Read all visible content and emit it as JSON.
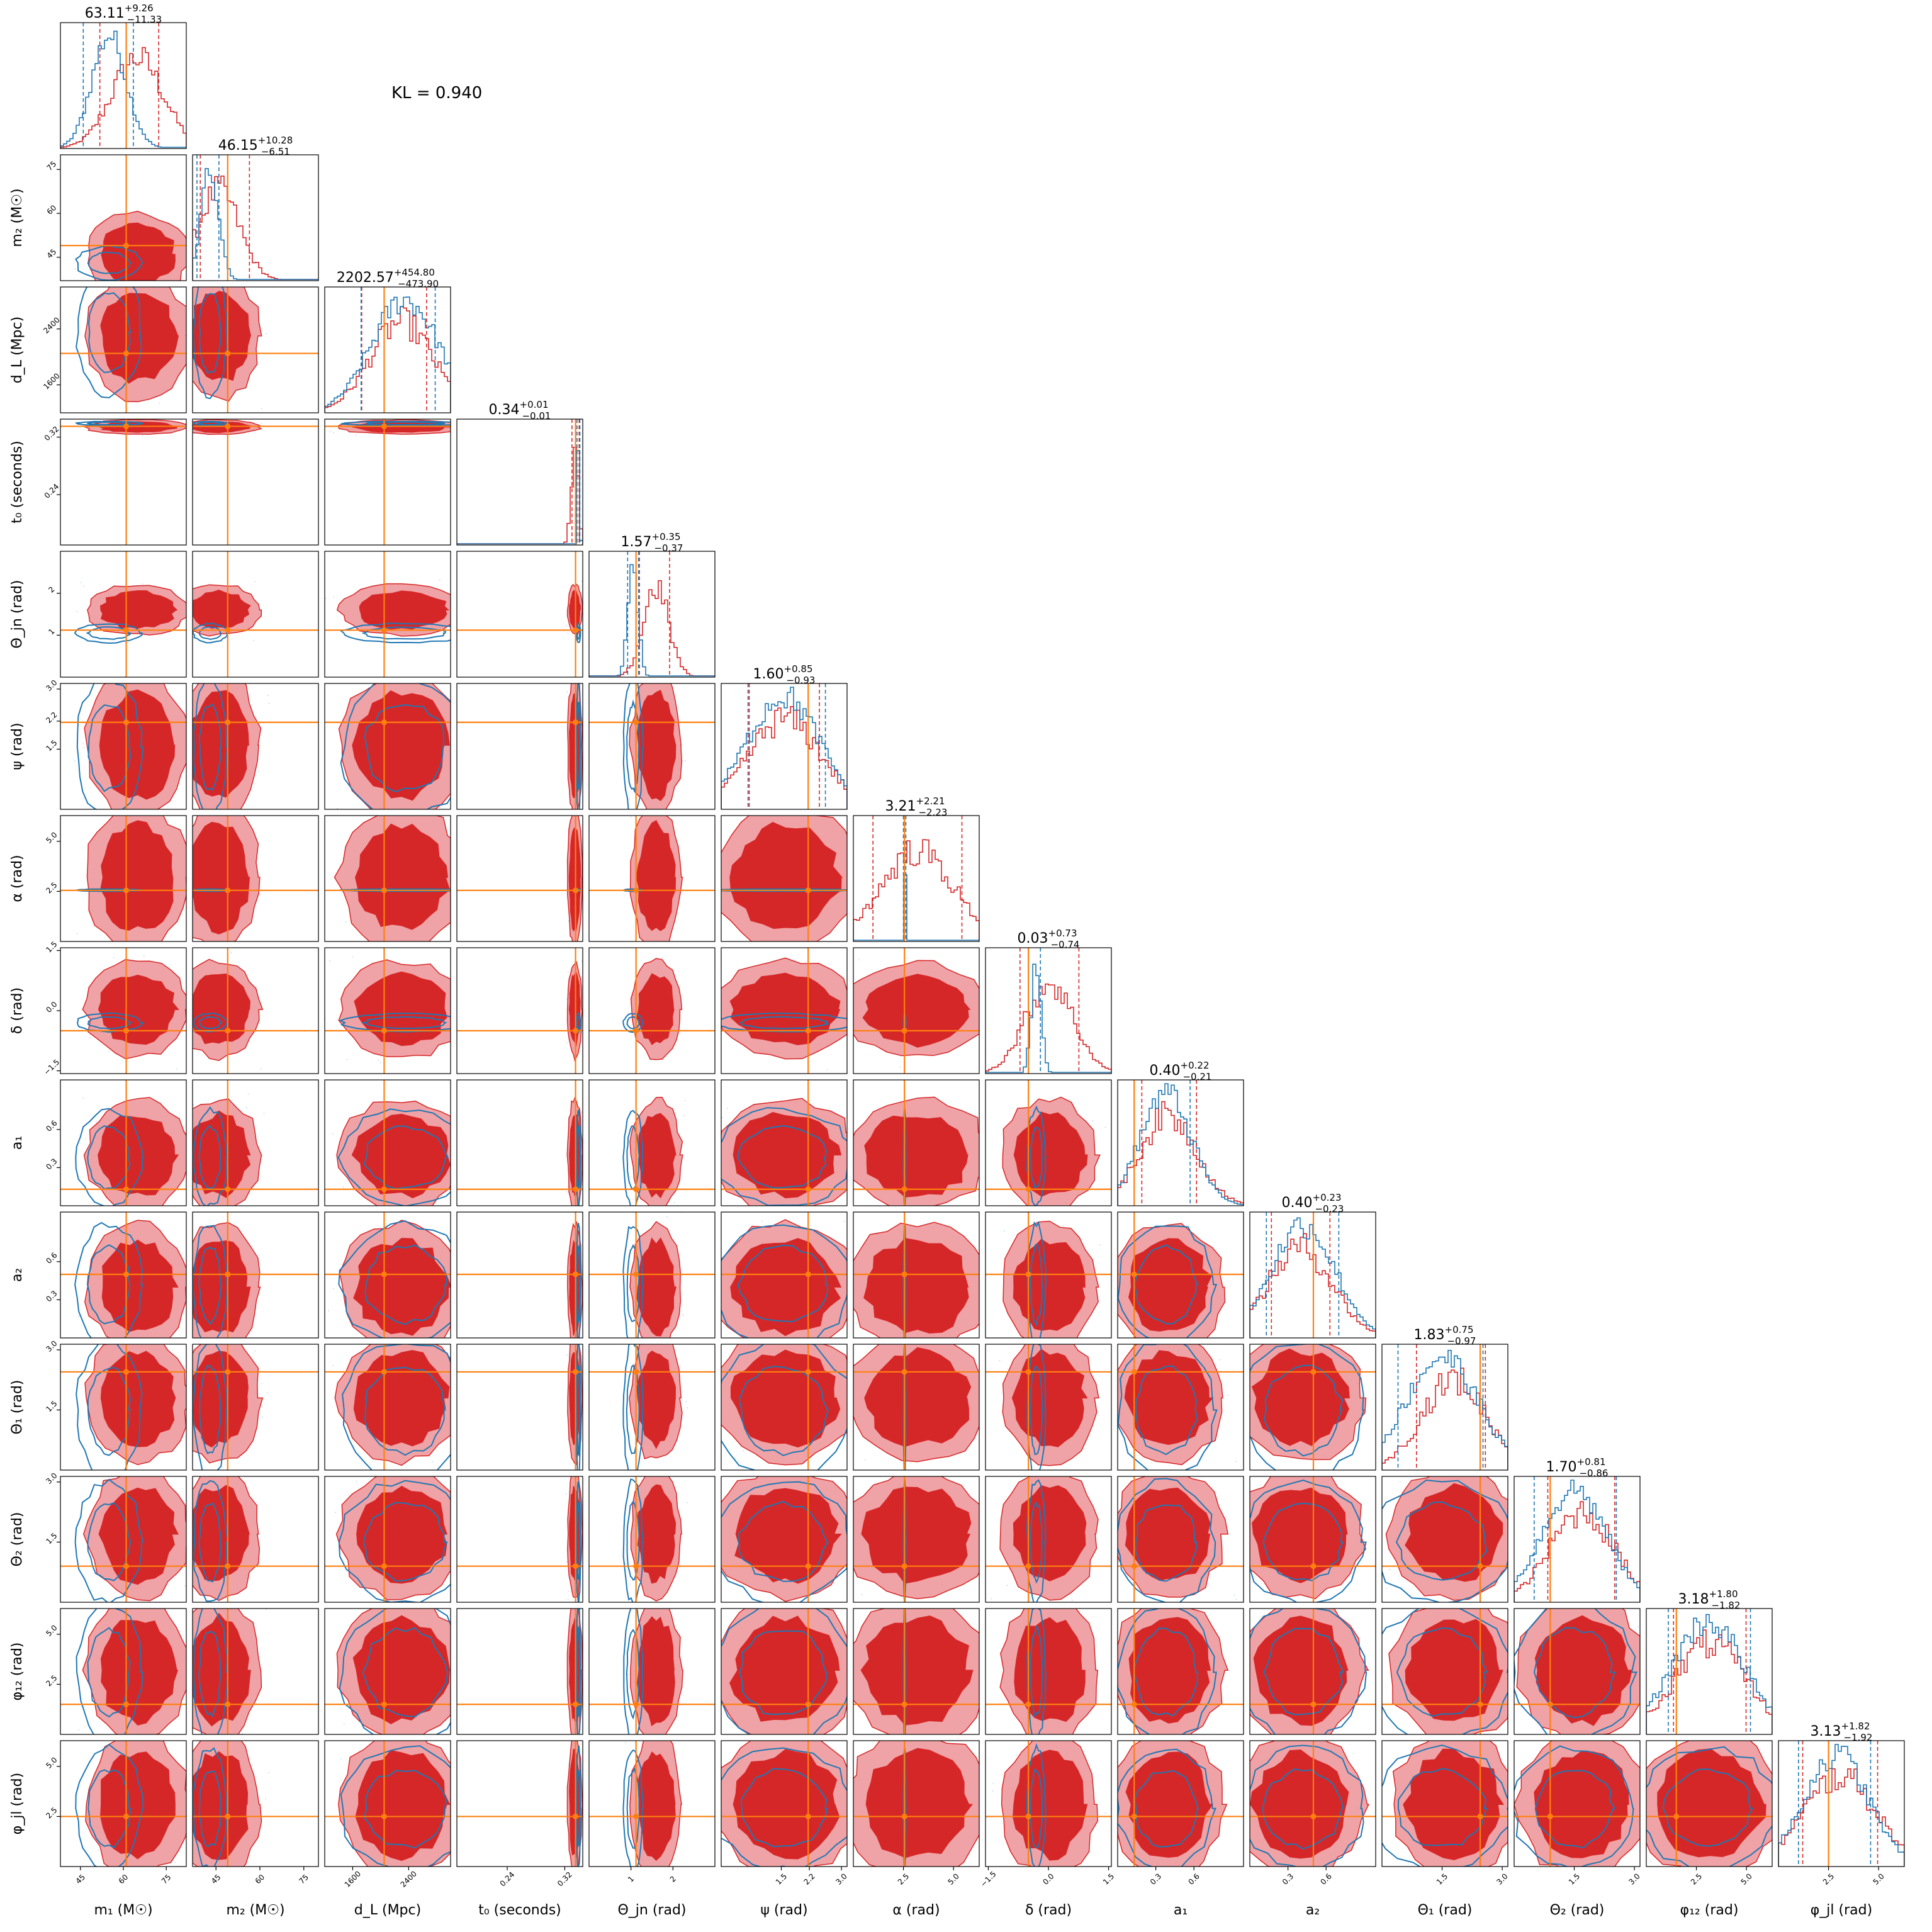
{
  "chart_data": {
    "type": "corner",
    "kl_text": "KL = 0.940",
    "colors": {
      "posterior_a": "#d62728",
      "posterior_a_fill": "#f0a3a6",
      "posterior_b": "#1f77b4",
      "truth": "#ff7f0e"
    },
    "parameters": [
      {
        "id": "m1",
        "label": "m₁ (M☉)",
        "range": [
          38,
          82
        ],
        "truth": 61.0,
        "title": "63.11",
        "plus": "+9.26",
        "minus": "−11.33",
        "ticks": [
          {
            "v": 45,
            "t": "45"
          },
          {
            "v": 60,
            "t": "60"
          },
          {
            "v": 75,
            "t": "75"
          }
        ],
        "ql": [
          51.78,
          72.37
        ],
        "qb": [
          46.0,
          63.5
        ],
        "ma": 65,
        "sa": 9,
        "mb": 55,
        "sb": 6
      },
      {
        "id": "m2",
        "label": "m₂ (M☉)",
        "range": [
          37,
          80
        ],
        "truth": 49.0,
        "title": "46.15",
        "plus": "+10.28",
        "minus": "−6.51",
        "ticks": [
          {
            "v": 45,
            "t": "45"
          },
          {
            "v": 60,
            "t": "60"
          },
          {
            "v": 75,
            "t": "75"
          }
        ],
        "ql": [
          39.64,
          56.43
        ],
        "qb": [
          38.5,
          46.0
        ],
        "ma": 46,
        "sa": 7,
        "mb": 43,
        "sb": 3
      },
      {
        "id": "dL",
        "label": "d_L (Mpc)",
        "range": [
          1200,
          3000
        ],
        "truth": 2050,
        "title": "2202.57",
        "plus": "+454.80",
        "minus": "−473.90",
        "ticks": [
          {
            "v": 1600,
            "t": "1600"
          },
          {
            "v": 2400,
            "t": "2400"
          }
        ],
        "ql": [
          1728.67,
          2657.37
        ],
        "qb": [
          1720,
          2780
        ],
        "ma": 2300,
        "sa": 450,
        "mb": 2350,
        "sb": 480
      },
      {
        "id": "t0",
        "label": "t₀ (seconds)",
        "range": [
          0.17,
          0.345
        ],
        "truth": 0.335,
        "title": "0.34",
        "plus": "+0.01",
        "minus": "−0.01",
        "ticks": [
          {
            "v": 0.24,
            "t": "0.24"
          },
          {
            "v": 0.32,
            "t": "0.32"
          }
        ],
        "ql": [
          0.33,
          0.34
        ],
        "qb": [
          0.337,
          0.341
        ],
        "ma": 0.334,
        "sa": 0.005,
        "mb": 0.339,
        "sb": 0.0015
      },
      {
        "id": "thetajn",
        "label": "Θ_jn (rad)",
        "range": [
          0,
          3.0
        ],
        "truth": 1.12,
        "title": "1.57",
        "plus": "+0.35",
        "minus": "−0.37",
        "ticks": [
          {
            "v": 1,
            "t": "1"
          },
          {
            "v": 2,
            "t": "2"
          }
        ],
        "ql": [
          1.2,
          1.92
        ],
        "qb": [
          0.92,
          1.18
        ],
        "ma": 1.6,
        "sa": 0.3,
        "mb": 1.05,
        "sb": 0.12
      },
      {
        "id": "psi",
        "label": "ψ (rad)",
        "range": [
          0,
          3.14
        ],
        "truth": 2.17,
        "title": "1.60",
        "plus": "+0.85",
        "minus": "−0.93",
        "ticks": [
          {
            "v": 1.5,
            "t": "1.5"
          },
          {
            "v": 2.2,
            "t": "2.2"
          },
          {
            "v": 3.0,
            "t": "3.0"
          }
        ],
        "ql": [
          0.67,
          2.45
        ],
        "qb": [
          0.7,
          2.6
        ],
        "ma": 1.6,
        "sa": 0.9,
        "mb": 1.55,
        "sb": 0.9
      },
      {
        "id": "alpha",
        "label": "α (rad)",
        "range": [
          0,
          6.283
        ],
        "truth": 2.55,
        "title": "3.21",
        "plus": "+2.21",
        "minus": "−2.23",
        "ticks": [
          {
            "v": 2.5,
            "t": "2.5"
          },
          {
            "v": 5.0,
            "t": "5.0"
          }
        ],
        "ql": [
          0.98,
          5.42
        ],
        "qb": [
          2.5,
          2.62
        ],
        "ma": 3.2,
        "sa": 1.8,
        "mb": 2.56,
        "sb": 0.03
      },
      {
        "id": "delta",
        "label": "δ (rad)",
        "range": [
          -1.57,
          1.57
        ],
        "truth": -0.5,
        "title": "0.03",
        "plus": "+0.73",
        "minus": "−0.74",
        "ticks": [
          {
            "v": -1.5,
            "t": "−1.5"
          },
          {
            "v": 0.0,
            "t": "0.0"
          },
          {
            "v": 1.5,
            "t": "1.5"
          }
        ],
        "ql": [
          -0.71,
          0.76
        ],
        "qb": [
          -0.5,
          -0.2
        ],
        "ma": 0.03,
        "sa": 0.6,
        "mb": -0.3,
        "sb": 0.12
      },
      {
        "id": "a1",
        "label": "a₁",
        "range": [
          0,
          0.99
        ],
        "truth": 0.13,
        "title": "0.40",
        "plus": "+0.22",
        "minus": "−0.21",
        "ticks": [
          {
            "v": 0.3,
            "t": "0.3"
          },
          {
            "v": 0.6,
            "t": "0.6"
          }
        ],
        "ql": [
          0.19,
          0.62
        ],
        "qb": [
          0.13,
          0.57
        ],
        "ma": 0.4,
        "sa": 0.22,
        "mb": 0.38,
        "sb": 0.2
      },
      {
        "id": "a2",
        "label": "a₂",
        "range": [
          0,
          0.99
        ],
        "truth": 0.5,
        "title": "0.40",
        "plus": "+0.23",
        "minus": "−0.23",
        "ticks": [
          {
            "v": 0.3,
            "t": "0.3"
          },
          {
            "v": 0.6,
            "t": "0.6"
          }
        ],
        "ql": [
          0.17,
          0.63
        ],
        "qb": [
          0.13,
          0.7
        ],
        "ma": 0.4,
        "sa": 0.25,
        "mb": 0.42,
        "sb": 0.25
      },
      {
        "id": "theta1",
        "label": "Θ₁ (rad)",
        "range": [
          0,
          3.14
        ],
        "truth": 2.45,
        "title": "1.83",
        "plus": "+0.75",
        "minus": "−0.97",
        "ticks": [
          {
            "v": 1.5,
            "t": "1.5"
          },
          {
            "v": 3.0,
            "t": "3.0"
          }
        ],
        "ql": [
          0.86,
          2.58
        ],
        "qb": [
          0.4,
          2.52
        ],
        "ma": 1.8,
        "sa": 0.8,
        "mb": 1.5,
        "sb": 0.9
      },
      {
        "id": "theta2",
        "label": "Θ₂ (rad)",
        "range": [
          0,
          3.14
        ],
        "truth": 0.9,
        "title": "1.70",
        "plus": "+0.81",
        "minus": "−0.86",
        "ticks": [
          {
            "v": 1.5,
            "t": "1.5"
          },
          {
            "v": 3.0,
            "t": "3.0"
          }
        ],
        "ql": [
          0.84,
          2.51
        ],
        "qb": [
          0.5,
          2.55
        ],
        "ma": 1.7,
        "sa": 0.8,
        "mb": 1.5,
        "sb": 0.8
      },
      {
        "id": "phi12",
        "label": "φ₁₂ (rad)",
        "range": [
          0,
          6.283
        ],
        "truth": 1.5,
        "title": "3.18",
        "plus": "+1.80",
        "minus": "−1.82",
        "ticks": [
          {
            "v": 2.5,
            "t": "2.5"
          },
          {
            "v": 5.0,
            "t": "5.0"
          }
        ],
        "ql": [
          1.36,
          4.98
        ],
        "qb": [
          1.1,
          5.2
        ],
        "ma": 3.2,
        "sa": 1.8,
        "mb": 3.1,
        "sb": 1.8
      },
      {
        "id": "phijl",
        "label": "φ_jl (rad)",
        "range": [
          0,
          6.283
        ],
        "truth": 2.5,
        "title": "3.13",
        "plus": "+1.82",
        "minus": "−1.92",
        "ticks": [
          {
            "v": 2.5,
            "t": "2.5"
          },
          {
            "v": 5.0,
            "t": "5.0"
          }
        ],
        "ql": [
          1.21,
          4.95
        ],
        "qb": [
          1.0,
          4.6
        ],
        "ma": 3.1,
        "sa": 1.8,
        "mb": 2.9,
        "sb": 1.6
      }
    ]
  }
}
